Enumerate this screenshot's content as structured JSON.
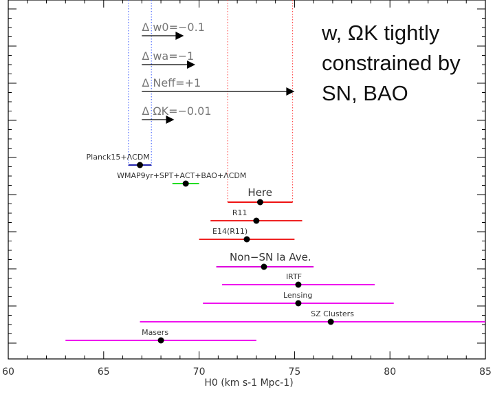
{
  "chart_data": {
    "type": "scatter",
    "title": "",
    "xlabel": "H0 (km s-1 Mpc-1)",
    "ylabel": "",
    "xlim": [
      60,
      85
    ],
    "xticks": [
      60,
      65,
      70,
      75,
      80,
      85
    ],
    "grid": false,
    "callout": {
      "line1": "w, ΩK tightly",
      "line2": "constrained by",
      "line3": "SN, BAO"
    },
    "shifts": [
      {
        "label": "Δ w0=−0.1",
        "from": 67.0,
        "to": 69.2
      },
      {
        "label": "Δ wa=−1",
        "from": 67.0,
        "to": 69.8
      },
      {
        "label": "Δ Neff=+1",
        "from": 67.0,
        "to": 75.0
      },
      {
        "label": "Δ ΩK=−0.01",
        "from": 67.0,
        "to": 68.7
      }
    ],
    "bands": [
      {
        "name": "Planck15+ΛCDM",
        "low": 66.3,
        "high": 67.5,
        "color": "#3355ff"
      },
      {
        "name": "Here",
        "low": 71.5,
        "high": 74.9,
        "color": "#ff3333"
      }
    ],
    "measurements": [
      {
        "label": "Planck15+ΛCDM",
        "value": 66.9,
        "low": 66.3,
        "high": 67.5,
        "color": "#2222aa"
      },
      {
        "label": "WMAP9yr+SPT+ACT+BAO+ΛCDM",
        "value": 69.3,
        "low": 68.6,
        "high": 70.0,
        "color": "#22dd22"
      },
      {
        "label": "Here",
        "value": 73.2,
        "low": 71.5,
        "high": 74.9,
        "color": "#ee1111"
      },
      {
        "label": "R11",
        "value": 73.0,
        "low": 70.6,
        "high": 75.4,
        "color": "#ee2222"
      },
      {
        "label": "E14(R11)",
        "value": 72.5,
        "low": 70.0,
        "high": 75.0,
        "color": "#ee2222"
      },
      {
        "label": "Non−SN Ia Ave.",
        "value": 73.4,
        "low": 70.9,
        "high": 76.0,
        "color": "#dd00dd"
      },
      {
        "label": "IRTF",
        "value": 75.2,
        "low": 71.2,
        "high": 79.2,
        "color": "#ee11ee"
      },
      {
        "label": "Lensing",
        "value": 75.2,
        "low": 70.2,
        "high": 80.2,
        "color": "#ee11ee"
      },
      {
        "label": "SZ Clusters",
        "value": 76.9,
        "low": 66.9,
        "high": 86.9,
        "color": "#ee11ee"
      },
      {
        "label": "Masers",
        "value": 68.0,
        "low": 63.0,
        "high": 73.0,
        "color": "#ee11ee"
      }
    ]
  }
}
